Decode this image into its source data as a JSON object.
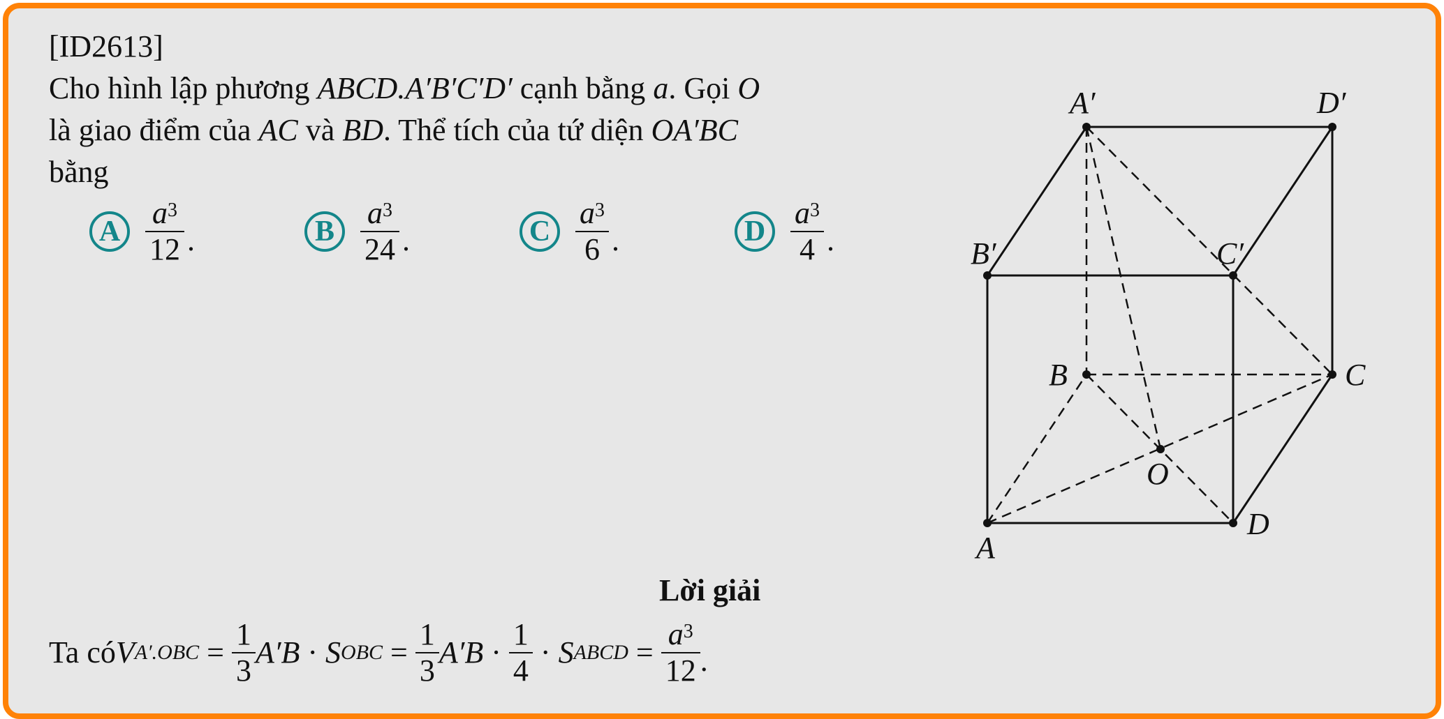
{
  "problem": {
    "id": "[ID2613]",
    "line1_prefix": "Cho hình lập phương ",
    "cube_name": "ABCD.A′B′C′D′",
    "line1_mid": " cạnh bằng ",
    "edge": "a",
    "line1_suffix": ". Gọi ",
    "point_o": "O",
    "line2_prefix": "là giao điểm của ",
    "seg_ac": "AC",
    "line2_mid": " và ",
    "seg_bd": "BD",
    "line2_mid2": ". Thể tích của tứ diện ",
    "tetra": "OA′BC",
    "line3": "bằng"
  },
  "options": [
    {
      "letter": "A",
      "num": "a",
      "exp": "3",
      "den": "12"
    },
    {
      "letter": "B",
      "num": "a",
      "exp": "3",
      "den": "24"
    },
    {
      "letter": "C",
      "num": "a",
      "exp": "3",
      "den": "6"
    },
    {
      "letter": "D",
      "num": "a",
      "exp": "3",
      "den": "4"
    }
  ],
  "figure_labels": {
    "A_prime": "A′",
    "D_prime": "D′",
    "B_prime": "B′",
    "C_prime": "C′",
    "B": "B",
    "C": "C",
    "O": "O",
    "A": "A",
    "D": "D"
  },
  "solution": {
    "heading": "Lời giải",
    "prefix": "Ta có ",
    "V": "V",
    "V_sub": "A′.OBC",
    "eq": " = ",
    "one": "1",
    "three": "3",
    "AprimeB": "A′B",
    "dot": " · ",
    "S": "S",
    "S_sub1": "OBC",
    "four": "4",
    "S_sub2": "ABCD",
    "res_num": "a",
    "res_exp": "3",
    "res_den": "12",
    "period": "."
  }
}
